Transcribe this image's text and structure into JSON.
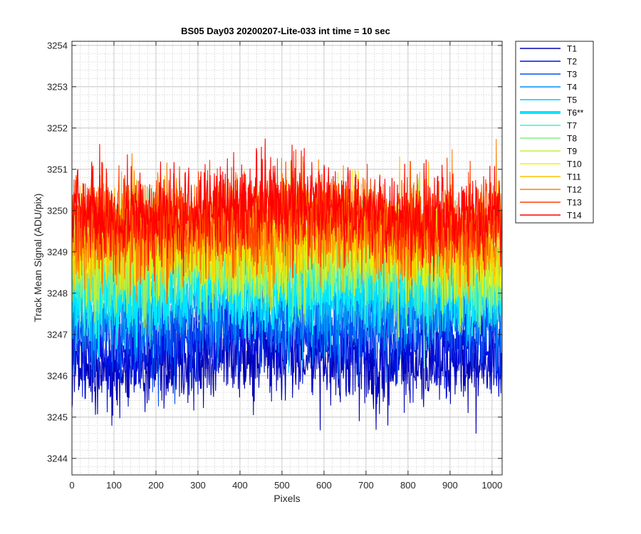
{
  "chart_data": {
    "type": "line",
    "title": "BS05 Day03 20200207-Lite-033 int time = 10 sec",
    "xlabel": "Pixels",
    "ylabel": "Track Mean Signal (ADU/pix)",
    "xlim": [
      0,
      1024
    ],
    "ylim": [
      3243.6,
      3254.1
    ],
    "xticks": [
      0,
      100,
      200,
      300,
      400,
      500,
      600,
      700,
      800,
      900,
      1000
    ],
    "yticks": [
      3244,
      3245,
      3246,
      3247,
      3248,
      3249,
      3250,
      3251,
      3252,
      3253,
      3254
    ],
    "grid": true,
    "minor_grid": true,
    "legend_position": "outside-top-right",
    "n_points": 1024,
    "series": [
      {
        "name": "T1",
        "color": "#0000b3",
        "mean": 3246.2,
        "noise": 0.55,
        "highlight": false
      },
      {
        "name": "T2",
        "color": "#0010e0",
        "mean": 3246.7,
        "noise": 0.55,
        "highlight": false
      },
      {
        "name": "T3",
        "color": "#0050f0",
        "mean": 3247.1,
        "noise": 0.55,
        "highlight": false
      },
      {
        "name": "T4",
        "color": "#0090f5",
        "mean": 3247.5,
        "noise": 0.55,
        "highlight": false
      },
      {
        "name": "T5",
        "color": "#00c8ff",
        "mean": 3247.9,
        "noise": 0.55,
        "highlight": false
      },
      {
        "name": "T6**",
        "color": "#00e6ff",
        "mean": 3248.1,
        "noise": 0.55,
        "highlight": true
      },
      {
        "name": "T7",
        "color": "#40f0c8",
        "mean": 3248.4,
        "noise": 0.6,
        "highlight": false
      },
      {
        "name": "T8",
        "color": "#80f080",
        "mean": 3248.6,
        "noise": 0.6,
        "highlight": false
      },
      {
        "name": "T9",
        "color": "#c0f040",
        "mean": 3248.8,
        "noise": 0.6,
        "highlight": false
      },
      {
        "name": "T10",
        "color": "#f0f000",
        "mean": 3249.0,
        "noise": 0.6,
        "highlight": false
      },
      {
        "name": "T11",
        "color": "#ffc000",
        "mean": 3249.2,
        "noise": 0.6,
        "highlight": false
      },
      {
        "name": "T12",
        "color": "#ff8000",
        "mean": 3249.4,
        "noise": 0.6,
        "highlight": false
      },
      {
        "name": "T13",
        "color": "#ff4000",
        "mean": 3249.6,
        "noise": 0.6,
        "highlight": false
      },
      {
        "name": "T14",
        "color": "#ff0000",
        "mean": 3249.8,
        "noise": 0.55,
        "highlight": false
      }
    ]
  }
}
